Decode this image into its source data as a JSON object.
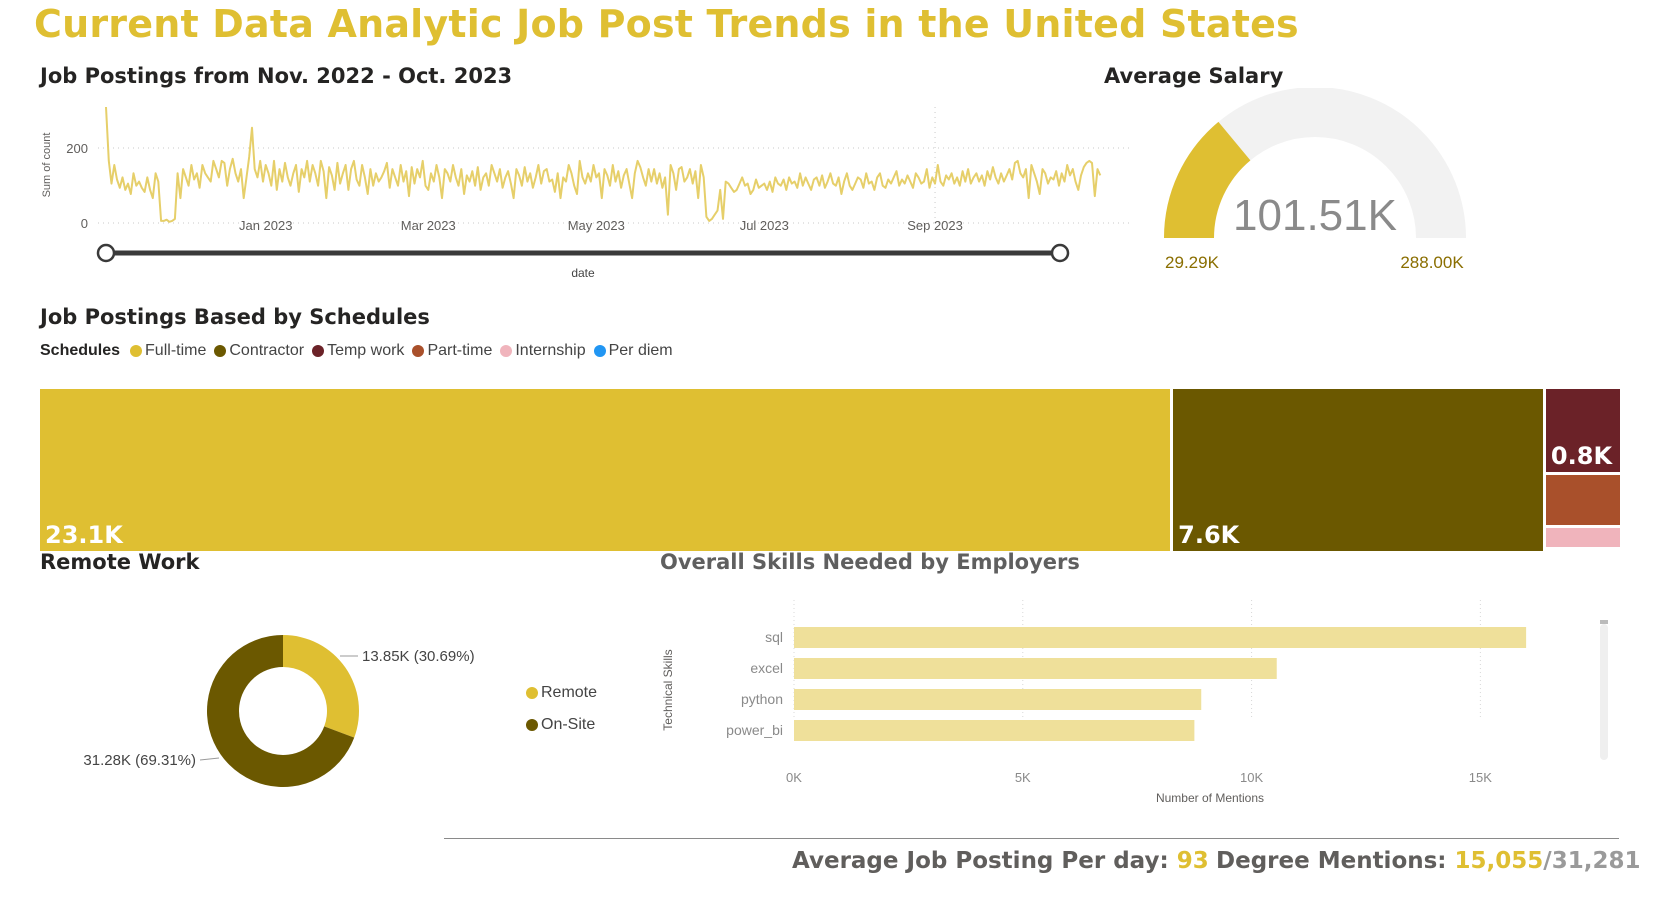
{
  "title": "Current Data Analytic Job Post Trends in the United States",
  "colors": {
    "accent": "#DFBF32",
    "dark_olive": "#6B5800",
    "maroon": "#6B2228",
    "rust": "#A9502B",
    "pink": "#F0B4BC",
    "blue": "#2196F3",
    "gauge_track": "#F2F2F2",
    "bar_fill": "#EFE09A"
  },
  "line_panel": {
    "title": "Job Postings from Nov. 2022 - Oct. 2023",
    "slider_label": "date"
  },
  "gauge_panel": {
    "title": "Average Salary",
    "value_label": "101.51K",
    "min_label": "29.29K",
    "max_label": "288.00K"
  },
  "schedule_panel": {
    "title": "Job Postings Based by Schedules",
    "legend_title": "Schedules"
  },
  "remote_panel": {
    "title": "Remote Work"
  },
  "skills_panel": {
    "title": "Overall Skills Needed by Employers"
  },
  "kpis": {
    "avg_label": "Average Job Posting Per day:",
    "avg_value": "93",
    "degree_label": "Degree Mentions:",
    "degree_value": "15,055",
    "degree_total": "/31,281"
  },
  "chart_data": [
    {
      "type": "line",
      "title": "Job Postings from Nov. 2022 - Oct. 2023",
      "xlabel": "date",
      "ylabel": "Sum of count",
      "x_range": [
        "2022-11-04",
        "2023-10-20"
      ],
      "x_ticks": [
        "Jan 2023",
        "Mar 2023",
        "May 2023",
        "Jul 2023",
        "Sep 2023"
      ],
      "x_tick_dates": [
        "2023-01-01",
        "2023-03-01",
        "2023-05-01",
        "2023-07-01",
        "2023-09-01"
      ],
      "ylim": [
        0,
        280
      ],
      "y_ticks": [
        0,
        200
      ],
      "grid": true,
      "start_date": "2022-11-04",
      "values": [
        280,
        150,
        95,
        140,
        105,
        85,
        110,
        80,
        95,
        70,
        120,
        90,
        100,
        85,
        75,
        110,
        80,
        60,
        120,
        100,
        5,
        5,
        8,
        3,
        5,
        10,
        120,
        60,
        130,
        110,
        90,
        140,
        105,
        120,
        85,
        140,
        120,
        110,
        100,
        150,
        130,
        110,
        150,
        145,
        90,
        130,
        155,
        120,
        100,
        130,
        60,
        110,
        160,
        230,
        130,
        110,
        150,
        100,
        140,
        120,
        90,
        150,
        80,
        130,
        100,
        145,
        110,
        90,
        120,
        140,
        75,
        130,
        110,
        150,
        100,
        140,
        120,
        90,
        150,
        125,
        60,
        135,
        115,
        80,
        145,
        95,
        120,
        140,
        80,
        130,
        150,
        105,
        90,
        140,
        110,
        70,
        130,
        90,
        120,
        100,
        110,
        125,
        145,
        85,
        130,
        110,
        90,
        140,
        100,
        125,
        65,
        135,
        95,
        130,
        110,
        150,
        90,
        80,
        120,
        100,
        140,
        110,
        60,
        130,
        120,
        100,
        140,
        110,
        90,
        130,
        70,
        115,
        100,
        125,
        90,
        135,
        80,
        110,
        120,
        90,
        140,
        120,
        100,
        130,
        85,
        110,
        125,
        95,
        60,
        130,
        115,
        90,
        135,
        100,
        120,
        85,
        110,
        140,
        95,
        125,
        130,
        100,
        105,
        75,
        120,
        60,
        110,
        100,
        140,
        120,
        90,
        70,
        150,
        110,
        95,
        120,
        100,
        140,
        110,
        120,
        60,
        130,
        115,
        90,
        140,
        100,
        125,
        85,
        115,
        130,
        95,
        60,
        120,
        150,
        135,
        110,
        90,
        130,
        100,
        130,
        95,
        120,
        85,
        110,
        20,
        140,
        120,
        80,
        130,
        135,
        100,
        110,
        130,
        95,
        125,
        60,
        140,
        110,
        15,
        5,
        10,
        20,
        30,
        80,
        10,
        100,
        95,
        85,
        75,
        80,
        95,
        110,
        90,
        95,
        70,
        80,
        105,
        85,
        90,
        95,
        80,
        100,
        75,
        110,
        95,
        90,
        105,
        80,
        110,
        95,
        100,
        85,
        120,
        90,
        110,
        95,
        80,
        105,
        110,
        90,
        115,
        85,
        100,
        120,
        95,
        90,
        110,
        70,
        100,
        120,
        90,
        80,
        95,
        110,
        105,
        85,
        120,
        95,
        100,
        80,
        110,
        120,
        90,
        85,
        105,
        95,
        110,
        125,
        90,
        105,
        95,
        115,
        100,
        85,
        120,
        110,
        95,
        100,
        130,
        85,
        110,
        95,
        140,
        100,
        90,
        115,
        105,
        120,
        95,
        110,
        90,
        125,
        100,
        130,
        95,
        110,
        120,
        100,
        115,
        90,
        125,
        105,
        135,
        110,
        95,
        120,
        100,
        115,
        130,
        105,
        145,
        150,
        120,
        110,
        130,
        60,
        140,
        120,
        100,
        70,
        130,
        120,
        95,
        110,
        105,
        125,
        90,
        120,
        100,
        140,
        115,
        130,
        100,
        80,
        115,
        135,
        145,
        150,
        145,
        65,
        130,
        115
      ]
    },
    {
      "type": "gauge",
      "title": "Average Salary",
      "value": 101510,
      "min": 29290,
      "max": 288000,
      "labels": [
        "101.51K",
        "29.29K",
        "288.00K"
      ]
    },
    {
      "type": "treemap",
      "title": "Job Postings Based by Schedules",
      "legend_title": "Schedules",
      "categories": [
        "Full-time",
        "Contractor",
        "Temp work",
        "Part-time",
        "Internship",
        "Per diem"
      ],
      "values": [
        23100,
        7600,
        800,
        500,
        200,
        10
      ],
      "data_labels": [
        "23.1K",
        "7.6K",
        "0.8K",
        "",
        "",
        ""
      ],
      "colors": [
        "#DFBF32",
        "#6B5800",
        "#6B2228",
        "#A9502B",
        "#F0B4BC",
        "#2196F3"
      ]
    },
    {
      "type": "pie",
      "title": "Remote Work",
      "donut": true,
      "categories": [
        "Remote",
        "On-Site"
      ],
      "values": [
        13850,
        31280
      ],
      "data_labels": [
        "13.85K (30.69%)",
        "31.28K (69.31%)"
      ],
      "colors": [
        "#DFBF32",
        "#6B5800"
      ]
    },
    {
      "type": "bar",
      "orientation": "horizontal",
      "title": "Overall Skills Needed by Employers",
      "categories": [
        "sql",
        "excel",
        "python",
        "power_bi"
      ],
      "values": [
        16000,
        10550,
        8900,
        8750
      ],
      "xlabel": "Number of Mentions",
      "ylabel": "Technical Skills",
      "xlim": [
        0,
        16500
      ],
      "x_ticks": [
        "0K",
        "5K",
        "10K",
        "15K"
      ],
      "x_tick_values": [
        0,
        5000,
        10000,
        15000
      ],
      "grid": true,
      "color": "#EFE09A"
    }
  ]
}
